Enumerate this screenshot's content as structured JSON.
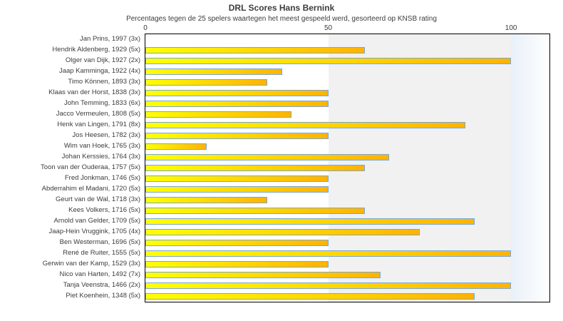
{
  "title": "DRL Scores Hans Bernink",
  "subtitle": "Percentages tegen de 25 spelers waartegen het meest gespeeld werd, gesorteerd op KNSB rating",
  "chart_data": {
    "type": "bar",
    "orientation": "horizontal",
    "title": "DRL Scores Hans Bernink",
    "subtitle": "Percentages tegen de 25 spelers waartegen het meest gespeeld werd, gesorteerd op KNSB rating",
    "xlabel": "",
    "ylabel": "",
    "xlim": [
      0,
      110.5
    ],
    "x_ticks": [
      0,
      50,
      100
    ],
    "grid": false,
    "legend": "none",
    "categories": [
      "Jan Prins, 1997 (3x)",
      "Hendrik Aldenberg, 1929 (5x)",
      "Olger van Dijk, 1927 (2x)",
      "Jaap Kamminga, 1922 (4x)",
      "Timo Können, 1893 (3x)",
      "Klaas van der Horst, 1838 (3x)",
      "John Temming, 1833 (6x)",
      "Jacco Vermeulen, 1808 (5x)",
      "Henk van Lingen, 1791 (8x)",
      "Jos Heesen, 1782 (3x)",
      "Wim van Hoek, 1765 (3x)",
      "Johan Kerssies, 1764 (3x)",
      "Toon van der Ouderaa, 1757 (5x)",
      "Fred Jonkman, 1746 (5x)",
      "Abderrahim el Madani, 1720 (5x)",
      "Geurt van de Wal, 1718 (3x)",
      "Kees Volkers, 1716 (5x)",
      "Arnold van Gelder, 1709 (5x)",
      "Jaap-Hein Vruggink, 1705 (4x)",
      "Ben Westerman, 1696 (5x)",
      "René de Ruiter, 1555 (5x)",
      "Gerwin van der Kamp, 1529 (3x)",
      "Nico van Harten, 1492 (7x)",
      "Tanja Veenstra, 1466 (2x)",
      "Piet Koenhein, 1348 (5x)"
    ],
    "values": [
      0,
      60,
      100,
      37.5,
      33.3,
      50,
      50,
      40,
      87.5,
      50,
      16.7,
      66.7,
      60,
      50,
      50,
      33.3,
      60,
      90,
      75,
      50,
      100,
      50,
      64.3,
      100,
      90
    ],
    "bands": [
      {
        "from": 0,
        "to": 50,
        "colors": [
          "#ffffff",
          "#ffffff"
        ]
      },
      {
        "from": 50,
        "to": 100,
        "colors": [
          "#f1f1f1",
          "#f1f1f1"
        ]
      },
      {
        "from": 100,
        "to": 110.5,
        "colors": [
          "#e9f0f8",
          "#feffff"
        ]
      }
    ],
    "colors": {
      "bar_gradient_start": "#ffff00",
      "bar_gradient_end": "#ffb300",
      "bar_border": "#7aa8d2",
      "plot_border": "#000000",
      "text": "#3c3c3c"
    }
  }
}
